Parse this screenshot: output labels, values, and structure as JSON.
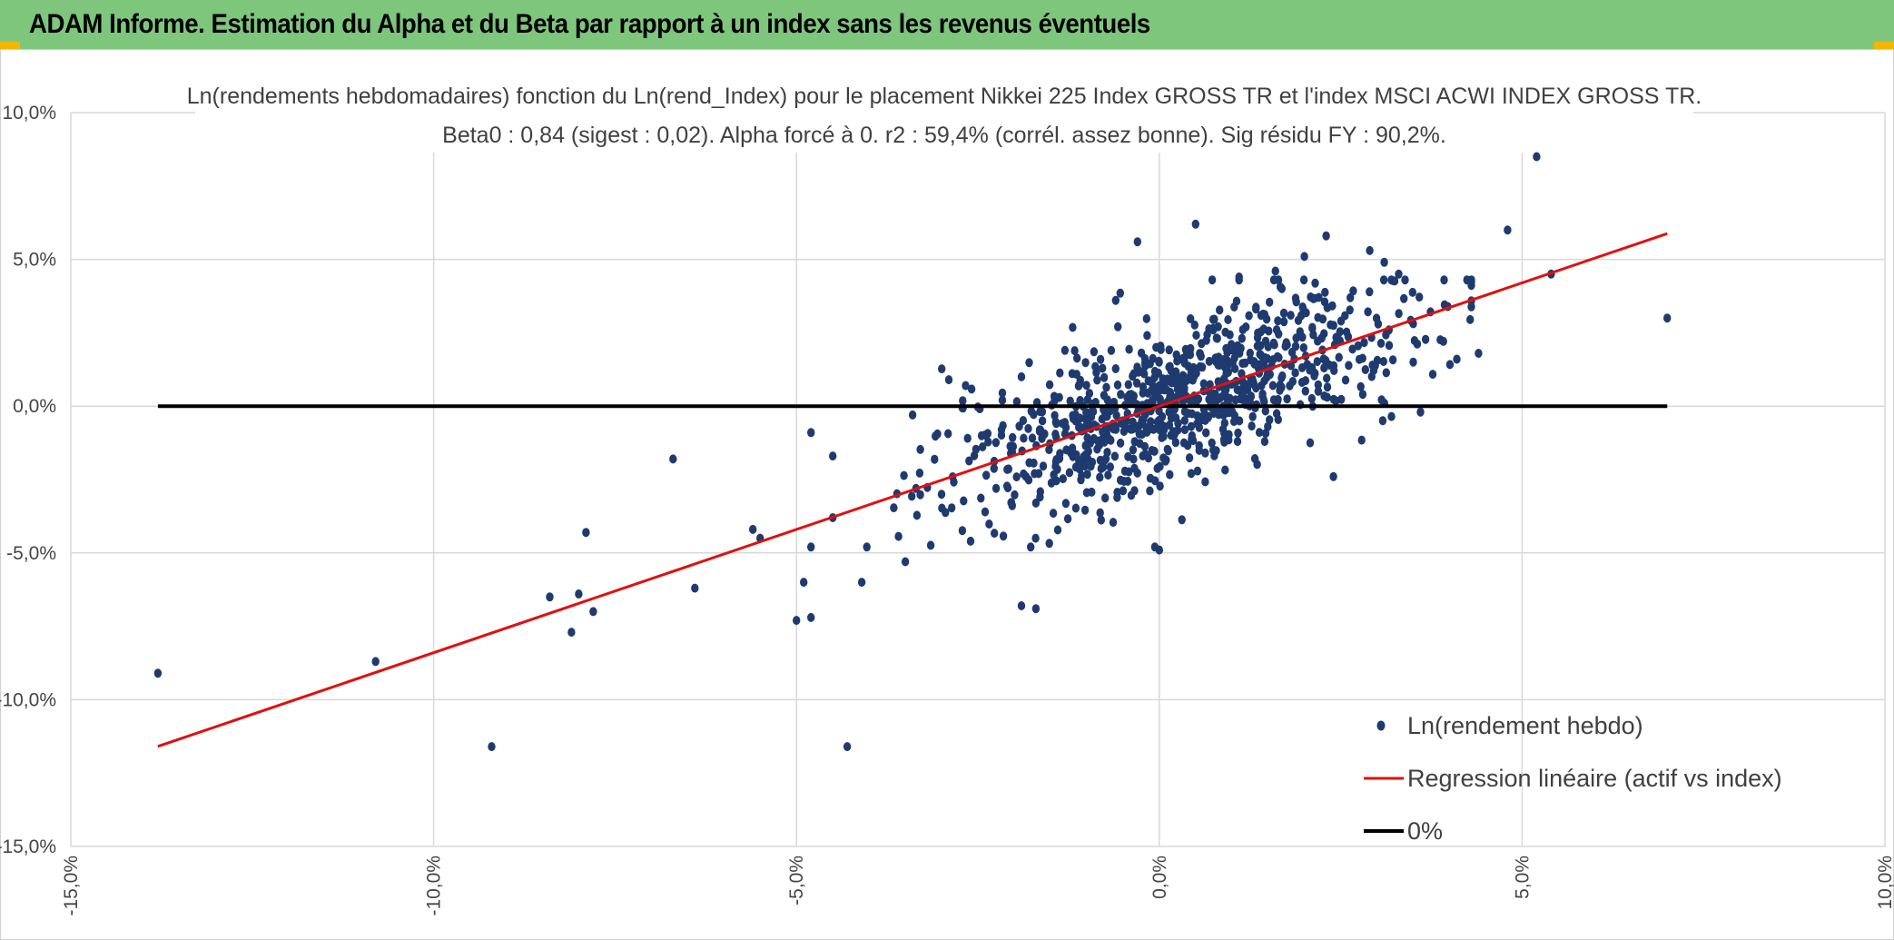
{
  "header": {
    "title": "ADAM Informe. Estimation du Alpha et du Beta par rapport à un index sans les revenus éventuels"
  },
  "colors": {
    "header_bg": "#7dc67c",
    "accent_corner": "#f2b705",
    "points": "#1f3a6e",
    "regression": "#e01010",
    "zero_line": "#000000",
    "grid": "#d9d9d9"
  },
  "chart_data": {
    "type": "scatter",
    "title": "Ln(rendements hebdomadaires) fonction du Ln(rend_Index) pour le placement Nikkei 225 Index GROSS TR et l'index MSCI ACWI INDEX GROSS TR.",
    "subtitle": "Beta0 : 0,84 (sigest : 0,02). Alpha forcé à 0. r2 : 59,4% (corrél. assez bonne). Sig résidu FY : 90,2%.",
    "xlim": [
      -15,
      10
    ],
    "ylim": [
      -15,
      10
    ],
    "x_ticks": [
      "-15,0%",
      "-10,0%",
      "-5,0%",
      "0,0%",
      "5,0%",
      "10,0%"
    ],
    "y_ticks": [
      "10,0%",
      "5,0%",
      "0,0%",
      "-5,0%",
      "-10,0%",
      "-15,0%"
    ],
    "grid": true,
    "legend_position": "bottom-right",
    "legend": [
      {
        "label": "Ln(rendement hebdo)",
        "kind": "marker"
      },
      {
        "label": "Regression linéaire (actif vs index)",
        "kind": "line-red"
      },
      {
        "label": "0%",
        "kind": "line-black"
      }
    ],
    "regression": {
      "slope": 0.84,
      "intercept": 0,
      "x_range": [
        -13.8,
        7.0
      ]
    },
    "zero_line": {
      "y": 0,
      "x_range": [
        -13.8,
        7.0
      ]
    },
    "points": [
      [
        -13.8,
        -9.1
      ],
      [
        -10.8,
        -8.7
      ],
      [
        -9.2,
        -11.6
      ],
      [
        -8.4,
        -6.5
      ],
      [
        -8.1,
        -7.7
      ],
      [
        -8.0,
        -6.4
      ],
      [
        -7.9,
        -4.3
      ],
      [
        -7.8,
        -7.0
      ],
      [
        -6.7,
        -1.8
      ],
      [
        -6.4,
        -6.2
      ],
      [
        -5.6,
        -4.2
      ],
      [
        -5.5,
        -4.5
      ],
      [
        -5.0,
        -7.3
      ],
      [
        -4.9,
        -6.0
      ],
      [
        -4.8,
        -7.2
      ],
      [
        -4.8,
        -0.9
      ],
      [
        -4.3,
        -11.6
      ],
      [
        -4.1,
        -6.0
      ],
      [
        -1.9,
        -6.8
      ],
      [
        -1.7,
        -6.9
      ],
      [
        -0.3,
        5.6
      ],
      [
        0.0,
        -4.9
      ],
      [
        0.5,
        6.2
      ],
      [
        5.2,
        8.5
      ],
      [
        4.8,
        6.0
      ],
      [
        5.4,
        4.5
      ],
      [
        7.0,
        3.0
      ],
      [
        3.6,
        -0.2
      ],
      [
        2.4,
        -2.4
      ],
      [
        4.4,
        1.8
      ],
      [
        4.1,
        1.6
      ],
      [
        3.5,
        1.5
      ],
      [
        -4.5,
        -3.8
      ],
      [
        -3.5,
        -5.3
      ],
      [
        -2.6,
        -4.6
      ],
      [
        -4.5,
        -1.7
      ],
      [
        -3.4,
        -0.3
      ],
      [
        -2.9,
        0.9
      ],
      [
        -1.9,
        1.0
      ],
      [
        -1.3,
        1.9
      ],
      [
        -0.6,
        3.6
      ],
      [
        1.6,
        4.6
      ],
      [
        2.0,
        5.1
      ],
      [
        2.3,
        5.8
      ],
      [
        2.9,
        5.3
      ],
      [
        3.1,
        4.9
      ],
      [
        3.3,
        4.5
      ],
      [
        1.1,
        4.4
      ],
      [
        -2.4,
        -3.6
      ],
      [
        -3.0,
        -3.0
      ]
    ],
    "cloud": {
      "count": 900,
      "x_mean": 0.3,
      "x_sd": 1.6,
      "slope": 0.84,
      "resid_sd": 1.3,
      "seed": 7
    }
  }
}
